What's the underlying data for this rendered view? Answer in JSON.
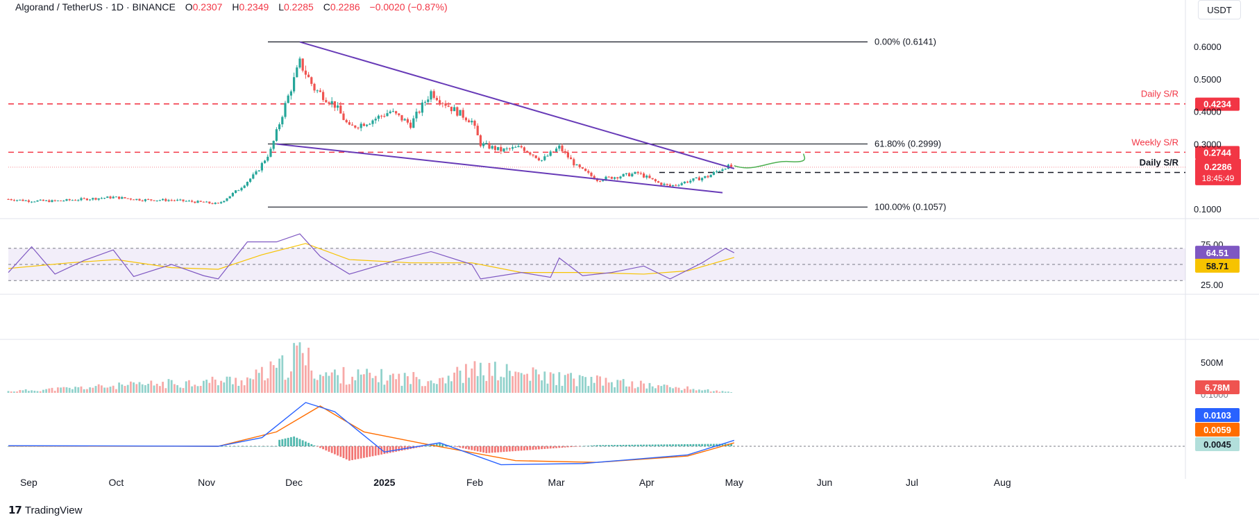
{
  "header": {
    "symbol": "Algorand / TetherUS · 1D · BINANCE",
    "open_label": "O",
    "open": "0.2307",
    "high_label": "H",
    "high": "0.2349",
    "low_label": "L",
    "low": "0.2285",
    "close_label": "C",
    "close": "0.2286",
    "change": "−0.0020 (−0.87%)"
  },
  "currency_button": "USDT",
  "footer": {
    "brand": "TradingView"
  },
  "colors": {
    "up": "#26a69a",
    "down": "#ef5350",
    "resistance": "#f23645",
    "wedge": "#673ab7",
    "rsi": "#7e57c2",
    "rsi_ma": "#f7c300",
    "macd": "#2962ff",
    "signal": "#ff6d00",
    "projection": "#4caf50"
  },
  "chart_data": [
    {
      "type": "candlestick",
      "title": "Algorand / TetherUS · 1D · BINANCE",
      "x_tick_labels": [
        "Sep",
        "Oct",
        "Nov",
        "Dec",
        "2025",
        "Feb",
        "Mar",
        "Apr",
        "May",
        "Jun",
        "Jul",
        "Aug"
      ],
      "y_tick_labels": [
        "0.6000",
        "0.5000",
        "0.4000",
        "0.3000",
        "0.1000"
      ],
      "ylim": [
        0.07,
        0.66
      ],
      "series": [
        {
          "name": "ALGO/USDT",
          "points": [
            {
              "date": "2024-08-25",
              "close": 0.13
            },
            {
              "date": "2024-09-01",
              "close": 0.125
            },
            {
              "date": "2024-09-10",
              "close": 0.124
            },
            {
              "date": "2024-09-20",
              "close": 0.13
            },
            {
              "date": "2024-09-30",
              "close": 0.136
            },
            {
              "date": "2024-10-10",
              "close": 0.128
            },
            {
              "date": "2024-10-20",
              "close": 0.127
            },
            {
              "date": "2024-10-31",
              "close": 0.12
            },
            {
              "date": "2024-11-05",
              "close": 0.115
            },
            {
              "date": "2024-11-12",
              "close": 0.16
            },
            {
              "date": "2024-11-18",
              "close": 0.21
            },
            {
              "date": "2024-11-23",
              "close": 0.28
            },
            {
              "date": "2024-11-28",
              "close": 0.42
            },
            {
              "date": "2024-12-03",
              "close": 0.55
            },
            {
              "date": "2024-12-08",
              "close": 0.47
            },
            {
              "date": "2024-12-15",
              "close": 0.42
            },
            {
              "date": "2024-12-20",
              "close": 0.35
            },
            {
              "date": "2024-12-27",
              "close": 0.37
            },
            {
              "date": "2025-01-03",
              "close": 0.4
            },
            {
              "date": "2025-01-10",
              "close": 0.36
            },
            {
              "date": "2025-01-17",
              "close": 0.46
            },
            {
              "date": "2025-01-24",
              "close": 0.41
            },
            {
              "date": "2025-01-31",
              "close": 0.37
            },
            {
              "date": "2025-02-03",
              "close": 0.3
            },
            {
              "date": "2025-02-10",
              "close": 0.28
            },
            {
              "date": "2025-02-17",
              "close": 0.29
            },
            {
              "date": "2025-02-24",
              "close": 0.25
            },
            {
              "date": "2025-03-02",
              "close": 0.29
            },
            {
              "date": "2025-03-08",
              "close": 0.23
            },
            {
              "date": "2025-03-15",
              "close": 0.19
            },
            {
              "date": "2025-03-22",
              "close": 0.2
            },
            {
              "date": "2025-03-29",
              "close": 0.21
            },
            {
              "date": "2025-04-05",
              "close": 0.18
            },
            {
              "date": "2025-04-09",
              "close": 0.17
            },
            {
              "date": "2025-04-15",
              "close": 0.185
            },
            {
              "date": "2025-04-22",
              "close": 0.2
            },
            {
              "date": "2025-04-28",
              "close": 0.23
            },
            {
              "date": "2025-05-01",
              "close": 0.2286
            }
          ]
        }
      ],
      "last_price": 0.2286,
      "countdown": "18:45:49",
      "fibonacci": [
        {
          "label": "0.00% (0.6141)",
          "value": 0.6141
        },
        {
          "label": "61.80% (0.2999)",
          "value": 0.2999
        },
        {
          "label": "100.00% (0.1057)",
          "value": 0.1057
        }
      ],
      "levels": [
        {
          "label": "Daily S/R",
          "value": 0.4234,
          "badge": "0.4234",
          "style": "dashed-red"
        },
        {
          "label": "Weekly S/R",
          "value": 0.2744,
          "badge": "0.2744",
          "style": "dashed-red"
        },
        {
          "label": "Daily S/R",
          "value": 0.2122,
          "badge": "0.2122",
          "style": "dashed-black"
        }
      ],
      "trendlines": [
        {
          "name": "upper",
          "from": {
            "date": "2024-12-03",
            "value": 0.6141
          },
          "to": {
            "date": "2025-05-01",
            "value": 0.224
          }
        },
        {
          "name": "lower",
          "from": {
            "date": "2024-11-25",
            "value": 0.2999
          },
          "to": {
            "date": "2025-04-27",
            "value": 0.15
          }
        }
      ]
    },
    {
      "type": "line",
      "title": "RSI",
      "y_tick_labels": [
        "75.00",
        "25.00"
      ],
      "ylim": [
        20,
        90
      ],
      "bands": [
        70,
        50,
        30
      ],
      "last_values": {
        "rsi": "64.51",
        "ma": "58.71"
      },
      "series": [
        {
          "points": [
            {
              "date": "2024-08-25",
              "value": 40
            },
            {
              "date": "2024-09-02",
              "value": 72
            },
            {
              "date": "2024-09-10",
              "value": 38
            },
            {
              "date": "2024-09-20",
              "value": 55
            },
            {
              "date": "2024-09-30",
              "value": 68
            },
            {
              "date": "2024-10-07",
              "value": 35
            },
            {
              "date": "2024-10-20",
              "value": 50
            },
            {
              "date": "2024-10-31",
              "value": 36
            },
            {
              "date": "2024-11-05",
              "value": 32
            },
            {
              "date": "2024-11-15",
              "value": 78
            },
            {
              "date": "2024-11-25",
              "value": 78
            },
            {
              "date": "2024-12-03",
              "value": 88
            },
            {
              "date": "2024-12-10",
              "value": 60
            },
            {
              "date": "2024-12-20",
              "value": 38
            },
            {
              "date": "2025-01-05",
              "value": 55
            },
            {
              "date": "2025-01-17",
              "value": 66
            },
            {
              "date": "2025-01-31",
              "value": 50
            },
            {
              "date": "2025-02-03",
              "value": 32
            },
            {
              "date": "2025-02-17",
              "value": 40
            },
            {
              "date": "2025-02-27",
              "value": 34
            },
            {
              "date": "2025-03-02",
              "value": 58
            },
            {
              "date": "2025-03-10",
              "value": 36
            },
            {
              "date": "2025-03-20",
              "value": 40
            },
            {
              "date": "2025-03-31",
              "value": 48
            },
            {
              "date": "2025-04-09",
              "value": 32
            },
            {
              "date": "2025-04-20",
              "value": 52
            },
            {
              "date": "2025-04-28",
              "value": 70
            },
            {
              "date": "2025-05-01",
              "value": 64.51
            }
          ]
        },
        {
          "points": [
            {
              "date": "2024-08-25",
              "value": 45
            },
            {
              "date": "2024-09-15",
              "value": 52
            },
            {
              "date": "2024-10-01",
              "value": 56
            },
            {
              "date": "2024-10-20",
              "value": 46
            },
            {
              "date": "2024-11-05",
              "value": 44
            },
            {
              "date": "2024-11-20",
              "value": 62
            },
            {
              "date": "2024-12-05",
              "value": 76
            },
            {
              "date": "2024-12-20",
              "value": 56
            },
            {
              "date": "2025-01-10",
              "value": 52
            },
            {
              "date": "2025-01-31",
              "value": 52
            },
            {
              "date": "2025-02-17",
              "value": 40
            },
            {
              "date": "2025-03-10",
              "value": 40
            },
            {
              "date": "2025-03-31",
              "value": 38
            },
            {
              "date": "2025-04-15",
              "value": 42
            },
            {
              "date": "2025-05-01",
              "value": 58.71
            }
          ]
        }
      ]
    },
    {
      "type": "bar",
      "title": "Volume",
      "y_tick_labels": [
        "500M",
        "0.1000"
      ],
      "last_value": "6.78M",
      "series": [
        {
          "points": [
            {
              "date": "2024-08-25",
              "value": 30
            },
            {
              "date": "2024-11-15",
              "value": 250
            },
            {
              "date": "2024-11-28",
              "value": 500
            },
            {
              "date": "2024-12-03",
              "value": 780
            },
            {
              "date": "2024-12-10",
              "value": 350
            },
            {
              "date": "2025-01-17",
              "value": 260
            },
            {
              "date": "2025-02-03",
              "value": 430
            },
            {
              "date": "2025-03-02",
              "value": 280
            },
            {
              "date": "2025-04-09",
              "value": 110
            },
            {
              "date": "2025-05-01",
              "value": 6.78
            }
          ]
        }
      ]
    },
    {
      "type": "line",
      "title": "MACD",
      "last_values": {
        "macd": "0.0103",
        "signal": "0.0059",
        "histogram": "0.0045"
      },
      "series": [
        {
          "points": [
            {
              "date": "2024-08-25",
              "value": 0.001
            },
            {
              "date": "2024-11-05",
              "value": 0.0
            },
            {
              "date": "2024-11-20",
              "value": 0.015
            },
            {
              "date": "2024-12-05",
              "value": 0.076
            },
            {
              "date": "2024-12-15",
              "value": 0.06
            },
            {
              "date": "2025-01-01",
              "value": -0.01
            },
            {
              "date": "2025-01-20",
              "value": 0.006
            },
            {
              "date": "2025-02-10",
              "value": -0.032
            },
            {
              "date": "2025-03-10",
              "value": -0.03
            },
            {
              "date": "2025-04-15",
              "value": -0.015
            },
            {
              "date": "2025-05-01",
              "value": 0.0103
            }
          ]
        },
        {
          "points": [
            {
              "date": "2024-08-25",
              "value": 0.0005
            },
            {
              "date": "2024-11-05",
              "value": 0.0
            },
            {
              "date": "2024-11-25",
              "value": 0.025
            },
            {
              "date": "2024-12-10",
              "value": 0.07
            },
            {
              "date": "2024-12-25",
              "value": 0.025
            },
            {
              "date": "2025-01-15",
              "value": 0.004
            },
            {
              "date": "2025-02-15",
              "value": -0.025
            },
            {
              "date": "2025-03-15",
              "value": -0.028
            },
            {
              "date": "2025-04-15",
              "value": -0.017
            },
            {
              "date": "2025-05-01",
              "value": 0.0059
            }
          ]
        },
        {
          "points": [
            {
              "date": "2024-11-25",
              "value": 0.01
            },
            {
              "date": "2024-12-01",
              "value": 0.017
            },
            {
              "date": "2024-12-20",
              "value": -0.025
            },
            {
              "date": "2025-01-20",
              "value": 0.005
            },
            {
              "date": "2025-02-05",
              "value": -0.012
            },
            {
              "date": "2025-03-15",
              "value": 0.002
            },
            {
              "date": "2025-05-01",
              "value": 0.0045
            }
          ]
        }
      ]
    }
  ]
}
